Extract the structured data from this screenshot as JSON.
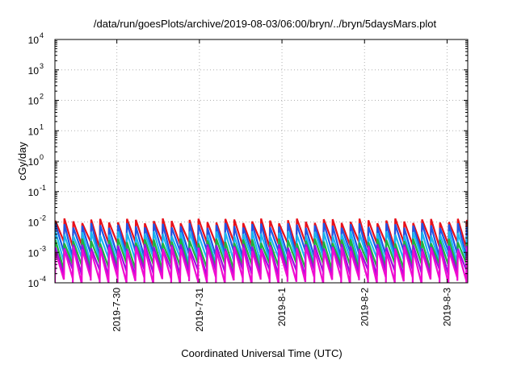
{
  "chart_data": {
    "type": "line",
    "title": "/data/run/goesPlots/archive/2019-08-03/06:00/bryn/../bryn/5daysMars.plot",
    "xlabel": "Coordinated Universal Time (UTC)",
    "ylabel": "cGy/day",
    "yscale": "log",
    "ylim": [
      0.0001,
      10000
    ],
    "y_ticks": [
      {
        "base": "10",
        "exp": "-4",
        "value": 0.0001
      },
      {
        "base": "10",
        "exp": "-3",
        "value": 0.001
      },
      {
        "base": "10",
        "exp": "-2",
        "value": 0.01
      },
      {
        "base": "10",
        "exp": "-1",
        "value": 0.1
      },
      {
        "base": "10",
        "exp": "0",
        "value": 1
      },
      {
        "base": "10",
        "exp": "1",
        "value": 10
      },
      {
        "base": "10",
        "exp": "2",
        "value": 100
      },
      {
        "base": "10",
        "exp": "3",
        "value": 1000
      },
      {
        "base": "10",
        "exp": "4",
        "value": 10000
      }
    ],
    "xlim": [
      "2019-07-29 06:00",
      "2019-08-03 06:00"
    ],
    "x_ticks": [
      "2019-7-30",
      "2019-7-31",
      "2019-8-1",
      "2019-8-2",
      "2019-8-3"
    ],
    "grid": true,
    "legend": "none",
    "sawtooth_period_hours": 2.6,
    "series": [
      {
        "color": "#e8101a",
        "peak": 0.011,
        "trough": 0.0018
      },
      {
        "color": "#1e56e6",
        "peak": 0.0078,
        "trough": 0.0009
      },
      {
        "color": "#19b8f0",
        "peak": 0.0042,
        "trough": 0.00055
      },
      {
        "color": "#1fb43c",
        "peak": 0.0024,
        "trough": 0.00035
      },
      {
        "color": "#9b0fe0",
        "peak": 0.0016,
        "trough": 0.00022
      },
      {
        "color": "#f00ad0",
        "peak": 0.0013,
        "trough": 0.00012
      }
    ]
  }
}
